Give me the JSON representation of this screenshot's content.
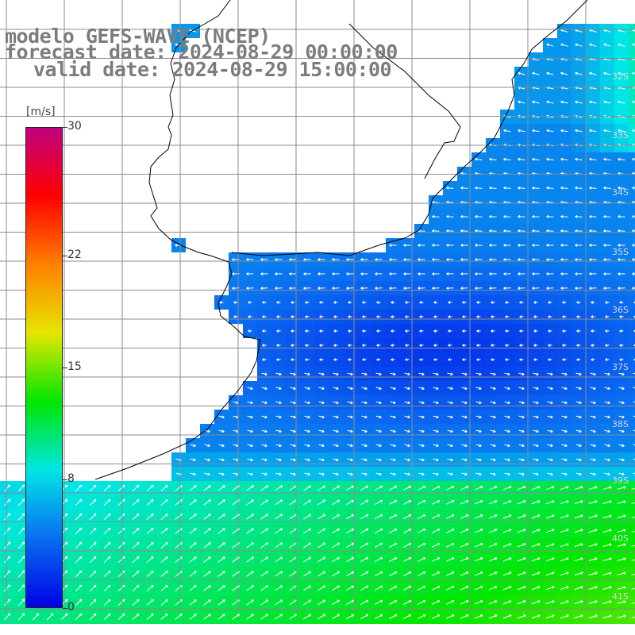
{
  "title": {
    "line1": "modelo GEFS-WAVE (NCEP)",
    "line2": "forecast date: 2024-08-29 00:00:00",
    "line3": "valid date: 2024-08-29 15:00:00"
  },
  "colorbar": {
    "unit": "[m/s]",
    "min": 0,
    "max": 30,
    "ticks": [
      {
        "label": "30",
        "value": 30
      },
      {
        "label": "22",
        "value": 22
      },
      {
        "label": "15",
        "value": 15
      },
      {
        "label": "8",
        "value": 8
      },
      {
        "label": "0",
        "value": 0
      }
    ],
    "colors": [
      "#0000e6",
      "#0a6cf0",
      "#00e6e6",
      "#00e600",
      "#e6e600",
      "#ff8000",
      "#ff0000",
      "#c00080"
    ]
  },
  "map": {
    "latitude_labels": [
      "32S",
      "33S",
      "34S",
      "35S",
      "36S",
      "37S",
      "38S",
      "39S",
      "40S",
      "41S"
    ],
    "land_color": "#ffffff",
    "grid_color": "#8c8c8c",
    "arrow_color": "#ffffff",
    "coast_color": "#000000",
    "wind_direction_note_north": "easterly to southeasterly winds north of ~39S",
    "wind_direction_note_south": "westerly to southwesterly winds south of ~39S"
  }
}
